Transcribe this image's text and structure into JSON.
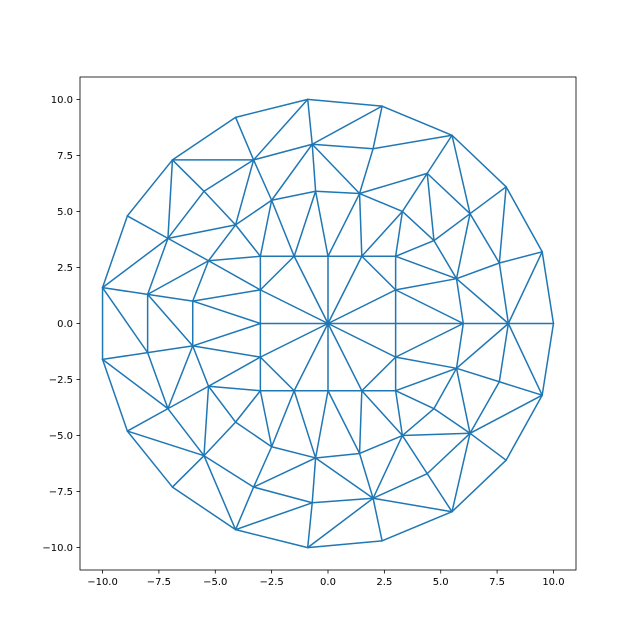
{
  "chart_data": {
    "type": "triplot",
    "title": "",
    "xlabel": "",
    "ylabel": "",
    "xlim": [
      -11.0,
      11.0
    ],
    "ylim": [
      -11.0,
      11.0
    ],
    "grid": false,
    "line_color": "#1f77b4",
    "x_ticks": [
      "−10.0",
      "−7.5",
      "−5.0",
      "−2.5",
      "0.0",
      "2.5",
      "5.0",
      "7.5",
      "10.0"
    ],
    "y_ticks": [
      "−10.0",
      "−7.5",
      "−5.0",
      "−2.5",
      "0.0",
      "2.5",
      "5.0",
      "7.5",
      "10.0"
    ],
    "tick_values": [
      -10,
      -7.5,
      -5,
      -2.5,
      0,
      2.5,
      5,
      7.5,
      10
    ],
    "nodes": [
      [
        -0.9,
        10.0
      ],
      [
        2.4,
        9.7
      ],
      [
        5.5,
        8.4
      ],
      [
        7.9,
        6.1
      ],
      [
        9.5,
        3.2
      ],
      [
        10,
        0
      ],
      [
        9.5,
        -3.2
      ],
      [
        7.9,
        -6.1
      ],
      [
        5.5,
        -8.4
      ],
      [
        2.4,
        -9.7
      ],
      [
        -0.9,
        -10.0
      ],
      [
        -4.1,
        -9.2
      ],
      [
        -6.9,
        -7.3
      ],
      [
        -8.9,
        -4.8
      ],
      [
        -10,
        -1.6
      ],
      [
        -10,
        1.6
      ],
      [
        -8.9,
        4.8
      ],
      [
        -6.9,
        7.3
      ],
      [
        -4.1,
        9.2
      ],
      [
        -3.3,
        7.3
      ],
      [
        -0.7,
        8.0
      ],
      [
        2.0,
        7.8
      ],
      [
        4.4,
        6.7
      ],
      [
        6.3,
        4.9
      ],
      [
        7.6,
        2.7
      ],
      [
        8,
        0
      ],
      [
        6,
        0
      ],
      [
        5.7,
        2.0
      ],
      [
        4.7,
        3.7
      ],
      [
        3.3,
        5.0
      ],
      [
        1.4,
        5.8
      ],
      [
        -0.55,
        5.9
      ],
      [
        -2.5,
        5.5
      ],
      [
        -4.1,
        4.4
      ],
      [
        -5.5,
        5.9
      ],
      [
        -7.1,
        3.8
      ],
      [
        -8,
        1.3
      ],
      [
        -6,
        1
      ],
      [
        -5.3,
        2.8
      ],
      [
        -3,
        3
      ],
      [
        -1.5,
        3
      ],
      [
        0,
        3
      ],
      [
        1.5,
        3
      ],
      [
        3,
        3
      ],
      [
        3,
        1.5
      ],
      [
        3,
        0
      ],
      [
        0,
        0
      ],
      [
        -3,
        1.5
      ],
      [
        -3,
        0
      ],
      [
        -6,
        -1
      ],
      [
        -8,
        -1.3
      ],
      [
        -7.1,
        -3.8
      ],
      [
        -5.3,
        -2.8
      ],
      [
        -3,
        -1.5
      ],
      [
        -3,
        -3
      ],
      [
        -1.5,
        -3
      ],
      [
        0,
        -3
      ],
      [
        1.5,
        -3
      ],
      [
        3,
        -3
      ],
      [
        3,
        -1.5
      ],
      [
        5.7,
        -2.0
      ],
      [
        7.6,
        -2.6
      ],
      [
        4.7,
        -3.8
      ],
      [
        6.3,
        -4.9
      ],
      [
        3.3,
        -5.0
      ],
      [
        4.4,
        -6.7
      ],
      [
        1.4,
        -5.8
      ],
      [
        2.0,
        -7.8
      ],
      [
        -0.55,
        -6.0
      ],
      [
        -0.7,
        -8.0
      ],
      [
        -2.5,
        -5.5
      ],
      [
        -4.1,
        -4.4
      ],
      [
        -5.5,
        -5.9
      ],
      [
        -3.3,
        -7.3
      ]
    ],
    "edges": [
      [
        0,
        1
      ],
      [
        1,
        2
      ],
      [
        2,
        3
      ],
      [
        3,
        4
      ],
      [
        4,
        5
      ],
      [
        5,
        6
      ],
      [
        6,
        7
      ],
      [
        7,
        8
      ],
      [
        8,
        9
      ],
      [
        9,
        10
      ],
      [
        10,
        11
      ],
      [
        11,
        12
      ],
      [
        12,
        13
      ],
      [
        13,
        14
      ],
      [
        14,
        15
      ],
      [
        15,
        16
      ],
      [
        16,
        17
      ],
      [
        17,
        18
      ],
      [
        18,
        0
      ],
      [
        18,
        19
      ],
      [
        0,
        19
      ],
      [
        0,
        20
      ],
      [
        17,
        19
      ],
      [
        19,
        20
      ],
      [
        17,
        34
      ],
      [
        34,
        33
      ],
      [
        17,
        35
      ],
      [
        19,
        34
      ],
      [
        34,
        35
      ],
      [
        19,
        33
      ],
      [
        19,
        32
      ],
      [
        20,
        32
      ],
      [
        20,
        31
      ],
      [
        20,
        30
      ],
      [
        16,
        35
      ],
      [
        15,
        35
      ],
      [
        35,
        33
      ],
      [
        35,
        36
      ],
      [
        35,
        38
      ],
      [
        38,
        47
      ],
      [
        47,
        46
      ],
      [
        47,
        40
      ],
      [
        33,
        32
      ],
      [
        33,
        38
      ],
      [
        33,
        39
      ],
      [
        32,
        39
      ],
      [
        32,
        40
      ],
      [
        32,
        31
      ],
      [
        31,
        40
      ],
      [
        31,
        41
      ],
      [
        31,
        30
      ],
      [
        38,
        39
      ],
      [
        38,
        37
      ],
      [
        38,
        36
      ],
      [
        15,
        36
      ],
      [
        36,
        37
      ],
      [
        37,
        47
      ],
      [
        39,
        40
      ],
      [
        40,
        41
      ],
      [
        39,
        47
      ],
      [
        47,
        48
      ],
      [
        40,
        46
      ],
      [
        41,
        46
      ],
      [
        37,
        49
      ],
      [
        36,
        50
      ],
      [
        15,
        50
      ],
      [
        36,
        49
      ],
      [
        37,
        48
      ],
      [
        48,
        46
      ],
      [
        20,
        1
      ],
      [
        20,
        21
      ],
      [
        1,
        21
      ],
      [
        21,
        2
      ],
      [
        21,
        30
      ],
      [
        30,
        22
      ],
      [
        2,
        22
      ],
      [
        2,
        23
      ],
      [
        3,
        23
      ],
      [
        3,
        24
      ],
      [
        4,
        24
      ],
      [
        4,
        25
      ],
      [
        22,
        29
      ],
      [
        22,
        23
      ],
      [
        22,
        28
      ],
      [
        30,
        29
      ],
      [
        30,
        42
      ],
      [
        30,
        41
      ],
      [
        29,
        42
      ],
      [
        29,
        43
      ],
      [
        29,
        28
      ],
      [
        23,
        28
      ],
      [
        23,
        27
      ],
      [
        23,
        24
      ],
      [
        43,
        28
      ],
      [
        28,
        27
      ],
      [
        43,
        27
      ],
      [
        24,
        27
      ],
      [
        27,
        44
      ],
      [
        27,
        26
      ],
      [
        27,
        25
      ],
      [
        41,
        42
      ],
      [
        42,
        43
      ],
      [
        42,
        46
      ],
      [
        42,
        44
      ],
      [
        43,
        44
      ],
      [
        44,
        46
      ],
      [
        44,
        26
      ],
      [
        44,
        45
      ],
      [
        46,
        45
      ],
      [
        45,
        26
      ],
      [
        26,
        25
      ],
      [
        25,
        5
      ],
      [
        24,
        25
      ],
      [
        14,
        50
      ],
      [
        50,
        49
      ],
      [
        49,
        53
      ],
      [
        49,
        48
      ],
      [
        14,
        51
      ],
      [
        50,
        51
      ],
      [
        49,
        51
      ],
      [
        49,
        52
      ],
      [
        13,
        51
      ],
      [
        51,
        52
      ],
      [
        53,
        52
      ],
      [
        48,
        53
      ],
      [
        53,
        54
      ],
      [
        53,
        46
      ],
      [
        53,
        55
      ],
      [
        52,
        54
      ],
      [
        54,
        55
      ],
      [
        55,
        56
      ],
      [
        55,
        46
      ],
      [
        46,
        56
      ],
      [
        52,
        71
      ],
      [
        52,
        72
      ],
      [
        54,
        71
      ],
      [
        54,
        70
      ],
      [
        55,
        70
      ],
      [
        55,
        68
      ],
      [
        71,
        70
      ],
      [
        71,
        72
      ],
      [
        51,
        72
      ],
      [
        13,
        72
      ],
      [
        12,
        72
      ],
      [
        72,
        11
      ],
      [
        72,
        73
      ],
      [
        70,
        68
      ],
      [
        70,
        73
      ],
      [
        73,
        11
      ],
      [
        11,
        69
      ],
      [
        73,
        69
      ],
      [
        73,
        68
      ],
      [
        68,
        69
      ],
      [
        69,
        10
      ],
      [
        56,
        68
      ],
      [
        46,
        59
      ],
      [
        46,
        57
      ],
      [
        45,
        59
      ],
      [
        26,
        59
      ],
      [
        26,
        60
      ],
      [
        25,
        60
      ],
      [
        25,
        61
      ],
      [
        25,
        6
      ],
      [
        59,
        60
      ],
      [
        59,
        57
      ],
      [
        59,
        58
      ],
      [
        58,
        60
      ],
      [
        60,
        62
      ],
      [
        60,
        63
      ],
      [
        60,
        61
      ],
      [
        61,
        6
      ],
      [
        61,
        63
      ],
      [
        6,
        63
      ],
      [
        63,
        7
      ],
      [
        63,
        8
      ],
      [
        63,
        65
      ],
      [
        63,
        64
      ],
      [
        63,
        62
      ],
      [
        62,
        58
      ],
      [
        62,
        64
      ],
      [
        58,
        64
      ],
      [
        57,
        64
      ],
      [
        57,
        66
      ],
      [
        56,
        57
      ],
      [
        57,
        58
      ],
      [
        56,
        66
      ],
      [
        64,
        66
      ],
      [
        64,
        67
      ],
      [
        64,
        65
      ],
      [
        65,
        67
      ],
      [
        65,
        8
      ],
      [
        67,
        8
      ],
      [
        66,
        67
      ],
      [
        68,
        66
      ],
      [
        68,
        67
      ],
      [
        69,
        67
      ],
      [
        10,
        67
      ],
      [
        67,
        9
      ]
    ]
  }
}
